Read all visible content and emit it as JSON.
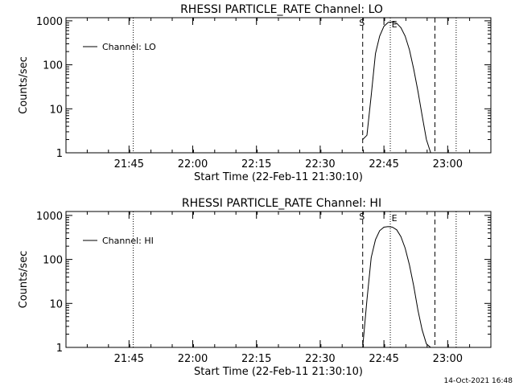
{
  "footer": {
    "timestamp": "14-Oct-2021 16:48"
  },
  "chart_data": [
    {
      "type": "line",
      "title": "RHESSI PARTICLE_RATE Channel: LO",
      "xlabel": "Start Time (22-Feb-11 21:30:10)",
      "ylabel": "Counts/sec",
      "yscale": "log",
      "xlim_minutes_after_start": [
        0,
        100
      ],
      "ylim": [
        1,
        1200
      ],
      "xtick_labels": [
        "21:45",
        "22:00",
        "22:15",
        "22:30",
        "22:45",
        "23:00"
      ],
      "ytick_labels": [
        "1",
        "10",
        "100",
        "1000"
      ],
      "legend": {
        "entries": [
          "Channel: LO"
        ],
        "position": "top-left"
      },
      "markers": {
        "start_label": "S",
        "end_label": "E"
      },
      "vlines_dotted": [
        "21:46:00",
        "22:46:30",
        "23:02:00"
      ],
      "vlines_dashed": [
        "22:40:00",
        "22:57:00"
      ],
      "series": [
        {
          "name": "Channel: LO",
          "x": [
            "22:40:00",
            "22:41:00",
            "22:42:00",
            "22:43:00",
            "22:44:00",
            "22:45:00",
            "22:46:00",
            "22:47:00",
            "22:48:00",
            "22:49:00",
            "22:50:00",
            "22:51:00",
            "22:52:00",
            "22:53:00",
            "22:54:00",
            "22:55:00",
            "22:56:00"
          ],
          "y": [
            2,
            2.5,
            20,
            180,
            450,
            750,
            920,
            950,
            880,
            700,
            450,
            220,
            80,
            25,
            7,
            2,
            1
          ]
        }
      ]
    },
    {
      "type": "line",
      "title": "RHESSI PARTICLE_RATE Channel: HI",
      "xlabel": "Start Time (22-Feb-11 21:30:10)",
      "ylabel": "Counts/sec",
      "yscale": "log",
      "xlim_minutes_after_start": [
        0,
        100
      ],
      "ylim": [
        1,
        1200
      ],
      "xtick_labels": [
        "21:45",
        "22:00",
        "22:15",
        "22:30",
        "22:45",
        "23:00"
      ],
      "ytick_labels": [
        "1",
        "10",
        "100",
        "1000"
      ],
      "legend": {
        "entries": [
          "Channel: HI"
        ],
        "position": "top-left"
      },
      "markers": {
        "start_label": "S",
        "end_label": "E"
      },
      "vlines_dotted": [
        "21:46:00",
        "22:46:30",
        "23:02:00"
      ],
      "vlines_dashed": [
        "22:40:00",
        "22:57:00"
      ],
      "series": [
        {
          "name": "Channel: HI",
          "x": [
            "22:40:00",
            "22:41:00",
            "22:42:00",
            "22:43:00",
            "22:44:00",
            "22:45:00",
            "22:46:00",
            "22:47:00",
            "22:48:00",
            "22:49:00",
            "22:50:00",
            "22:51:00",
            "22:52:00",
            "22:53:00",
            "22:54:00",
            "22:55:00",
            "22:56:00"
          ],
          "y": [
            1,
            12,
            110,
            280,
            450,
            540,
            560,
            540,
            470,
            330,
            180,
            75,
            25,
            7,
            2.5,
            1.2,
            1
          ]
        }
      ]
    }
  ]
}
